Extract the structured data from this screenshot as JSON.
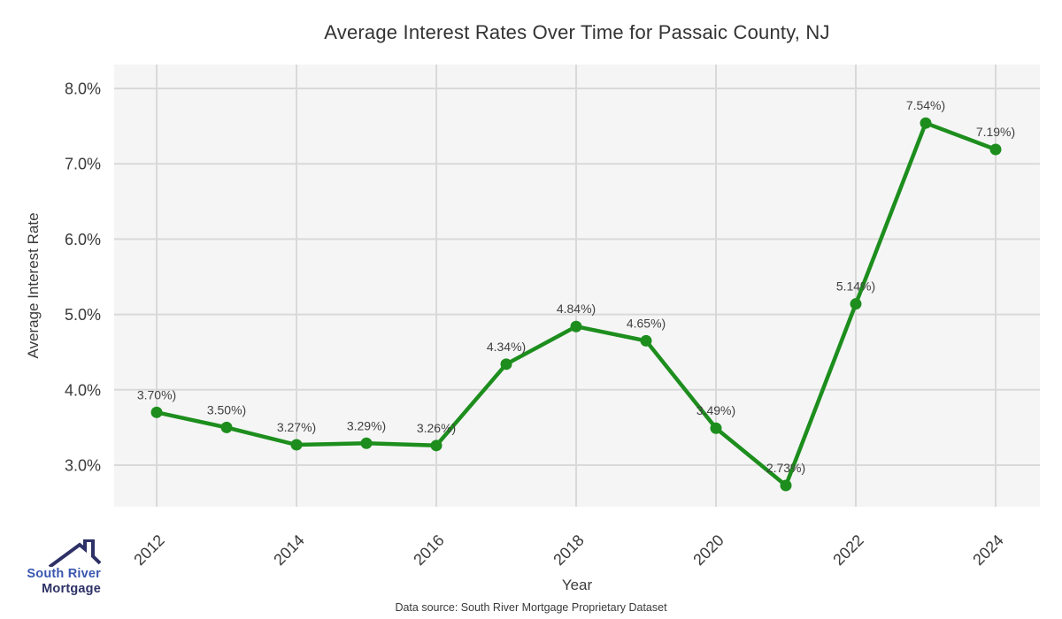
{
  "chart_data": {
    "type": "line",
    "title": "Average Interest Rates Over Time for Passaic County, NJ",
    "xlabel": "Year",
    "ylabel": "Average Interest Rate",
    "x": [
      2012,
      2013,
      2014,
      2015,
      2016,
      2017,
      2018,
      2019,
      2020,
      2021,
      2022,
      2023,
      2024
    ],
    "values": [
      3.7,
      3.5,
      3.27,
      3.29,
      3.26,
      4.34,
      4.84,
      4.65,
      3.49,
      2.73,
      5.14,
      7.54,
      7.19
    ],
    "point_labels": [
      "3.70%)",
      "3.50%)",
      "3.27%)",
      "3.29%)",
      "3.26%)",
      "4.34%)",
      "4.84%)",
      "4.65%)",
      "3.49%)",
      "2.73%)",
      "5.14%)",
      "7.54%)",
      "7.19%)"
    ],
    "x_tick_values": [
      2012,
      2014,
      2016,
      2018,
      2020,
      2022,
      2024
    ],
    "x_tick_labels": [
      "2012",
      "2014",
      "2016",
      "2018",
      "2020",
      "2022",
      "2024"
    ],
    "y_tick_values": [
      3,
      4,
      5,
      6,
      7,
      8
    ],
    "y_tick_labels": [
      "3.0%",
      "4.0%",
      "5.0%",
      "6.0%",
      "7.0%",
      "8.0%"
    ],
    "xlim": [
      2011.392,
      2024.633
    ],
    "ylim": [
      2.448,
      8.317
    ],
    "grid": true,
    "legend": "none",
    "colors": {
      "line": "#1d8e1d",
      "marker": "#1d8e1d",
      "panel_bg": "#f5f5f6",
      "gridline": "#d9d9d9",
      "tick_text": "#3a3a3a",
      "point_label_text": "#404040"
    }
  },
  "footer": {
    "source_text": "Data source: South River Mortgage Proprietary Dataset"
  },
  "logo": {
    "line1": "South River",
    "line2": "Mortgage",
    "icon": "house-roof-icon",
    "line1_color": "#3a57b0",
    "line2_color": "#2d3166"
  }
}
